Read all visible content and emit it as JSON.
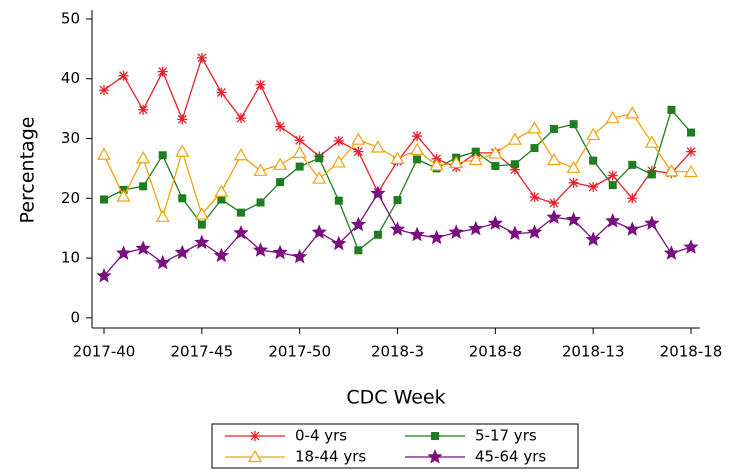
{
  "chart_data": {
    "type": "line",
    "x_label": "CDC Week",
    "y_label": "Percentage",
    "categories": [
      "2017-40",
      null,
      null,
      null,
      null,
      "2017-45",
      null,
      null,
      null,
      null,
      "2017-50",
      null,
      null,
      null,
      null,
      "2018-3",
      null,
      null,
      null,
      null,
      "2018-8",
      null,
      null,
      null,
      null,
      "2018-13",
      null,
      null,
      null,
      null,
      "2018-18"
    ],
    "ylim": [
      -1.7,
      51.5
    ],
    "yticks": [
      0,
      10,
      20,
      30,
      40,
      50
    ],
    "legend": "bottom",
    "series": [
      {
        "name": "0-4 yrs",
        "color": "#e8202a",
        "marker": "asterisk",
        "values": [
          38.1,
          40.5,
          34.8,
          41.2,
          33.2,
          43.5,
          37.7,
          33.4,
          39.0,
          32.0,
          29.7,
          27.0,
          29.6,
          27.8,
          21.0,
          26.2,
          30.4,
          26.6,
          25.2,
          27.6,
          27.6,
          24.8,
          20.2,
          19.2,
          22.6,
          21.9,
          23.8,
          20.0,
          24.6,
          24.2,
          27.8
        ]
      },
      {
        "name": "5-17 yrs",
        "color": "#1e7d1e",
        "marker": "square",
        "values": [
          19.8,
          21.4,
          22.0,
          27.2,
          20.0,
          15.6,
          19.8,
          17.6,
          19.3,
          22.7,
          25.3,
          26.7,
          19.6,
          11.3,
          13.9,
          19.7,
          26.5,
          25.0,
          26.8,
          27.8,
          25.4,
          25.7,
          28.4,
          31.6,
          32.4,
          26.3,
          22.2,
          25.6,
          24.0,
          34.8,
          31.0
        ]
      },
      {
        "name": "18-44 yrs",
        "color": "#f2a20c",
        "marker": "triangle",
        "values": [
          27.3,
          20.3,
          26.7,
          16.9,
          27.8,
          17.3,
          21.1,
          27.2,
          24.6,
          25.6,
          27.6,
          23.3,
          26.0,
          29.8,
          28.5,
          26.6,
          28.1,
          25.5,
          25.9,
          26.4,
          27.5,
          29.8,
          31.7,
          26.4,
          25.1,
          30.6,
          33.4,
          34.2,
          29.3,
          24.5,
          24.4
        ]
      },
      {
        "name": "45-64 yrs",
        "color": "#7a0f7f",
        "marker": "star",
        "values": [
          7.0,
          10.8,
          11.6,
          9.2,
          10.9,
          12.6,
          10.4,
          14.2,
          11.3,
          10.9,
          10.2,
          14.3,
          12.4,
          15.6,
          20.8,
          14.8,
          13.9,
          13.4,
          14.3,
          14.9,
          15.8,
          14.1,
          14.3,
          16.8,
          16.4,
          13.1,
          16.2,
          14.8,
          15.8,
          10.8,
          11.8
        ]
      }
    ]
  }
}
